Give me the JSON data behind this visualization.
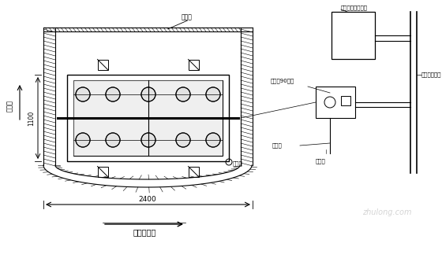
{
  "bg_color": "#ffffff",
  "line_color": "#000000",
  "left_label": "水流向",
  "bottom_label": "恩施（南）",
  "dim_2400": "2400",
  "dim_1100": "1100",
  "label_mubанpi": "模板皮",
  "label_jishuikeng": "积水坑",
  "label_xibeng": "吸泵（90型）",
  "label_xiguandao": "吸管道",
  "label_paishui": "南泵进场使道",
  "label_shashi": "砂、石、水泥料场",
  "label_jihe": "计合箱"
}
